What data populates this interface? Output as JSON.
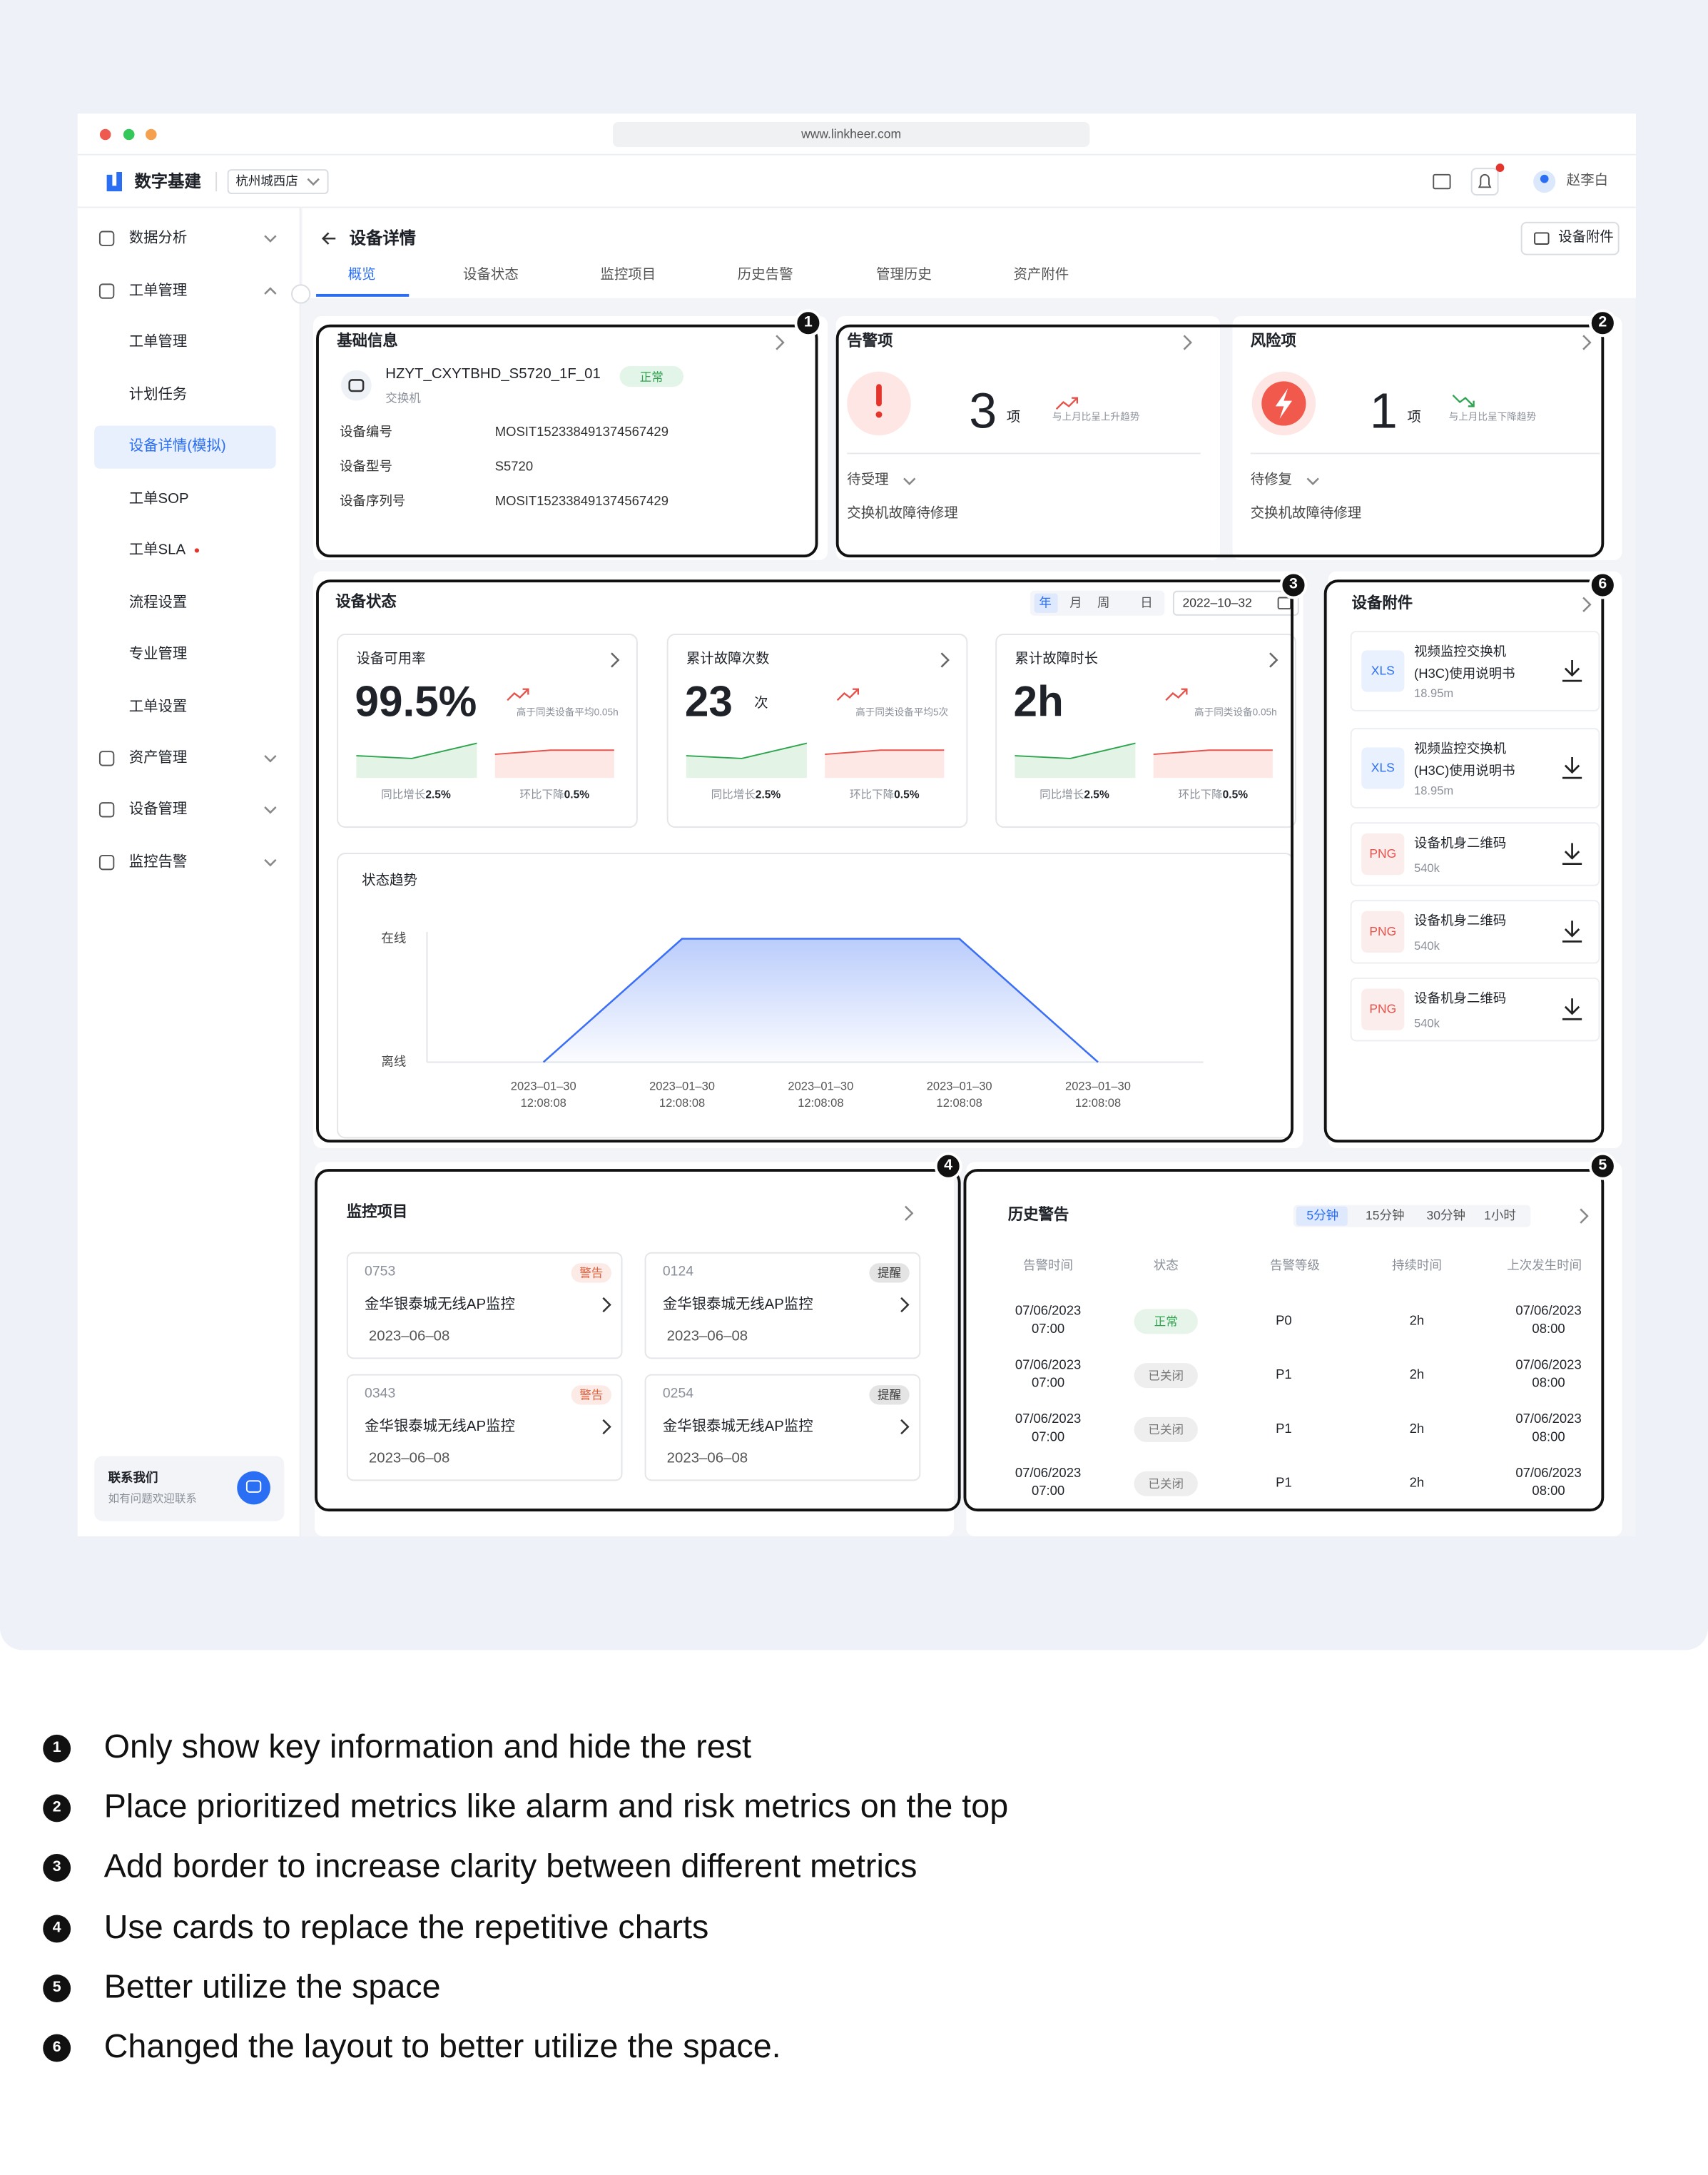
{
  "browser": {
    "url": "www.linkheer.com"
  },
  "header": {
    "app_name": "数字基建",
    "store": "杭州城西店",
    "user": "赵李白"
  },
  "sidebar": {
    "items": [
      {
        "label": "数据分析"
      },
      {
        "label": "工单管理",
        "children": [
          "工单管理",
          "计划任务",
          "设备详情(模拟)",
          "工单SOP",
          "工单SLA",
          "流程设置",
          "专业管理",
          "工单设置"
        ]
      },
      {
        "label": "资产管理"
      },
      {
        "label": "设备管理"
      },
      {
        "label": "监控告警"
      }
    ],
    "contact": {
      "title": "联系我们",
      "subtitle": "如有问题欢迎联系"
    }
  },
  "page": {
    "title": "设备详情",
    "attachment_button": "设备附件",
    "tabs": [
      "概览",
      "设备状态",
      "监控项目",
      "历史告警",
      "管理历史",
      "资产附件"
    ]
  },
  "basic_info": {
    "title": "基础信息",
    "device_name": "HZYT_CXYTBHD_S5720_1F_01",
    "status": "正常",
    "device_type": "交换机",
    "fields": [
      {
        "label": "设备编号",
        "value": "MOSIT152338491374567429"
      },
      {
        "label": "设备型号",
        "value": "S5720"
      },
      {
        "label": "设备序列号",
        "value": "MOSIT152338491374567429"
      }
    ]
  },
  "alarm": {
    "title": "告警项",
    "count": 3,
    "unit": "项",
    "trend": "与上月比呈上升趋势",
    "status": "待受理",
    "description": "交换机故障待修理"
  },
  "risk": {
    "title": "风险项",
    "count": 1,
    "unit": "项",
    "trend": "与上月比呈下降趋势",
    "status": "待修复",
    "description": "交换机故障待修理"
  },
  "device_status": {
    "title": "设备状态",
    "periods": [
      "年",
      "月",
      "周",
      "日"
    ],
    "date": "2022–10–32",
    "metrics": [
      {
        "title": "设备可用率",
        "value": "99.5%",
        "comparison": "高于同类设备平均0.05h",
        "yoy_label": "同比增长",
        "yoy_value": "2.5%",
        "mom_label": "环比下降",
        "mom_value": "0.5%"
      },
      {
        "title": "累计故障次数",
        "value": 23,
        "unit": "次",
        "comparison": "高于同类设备平均5次",
        "yoy_label": "同比增长",
        "yoy_value": "2.5%",
        "mom_label": "环比下降",
        "mom_value": "0.5%"
      },
      {
        "title": "累计故障时长",
        "value": "2h",
        "comparison": "高于同类设备0.05h",
        "yoy_label": "同比增长",
        "yoy_value": "2.5%",
        "mom_label": "环比下降",
        "mom_value": "0.5%"
      }
    ]
  },
  "chart_data": {
    "type": "line",
    "title": "状态趋势",
    "categories": [
      "2023–01–30\n12:08:08",
      "2023–01–30\n12:08:08",
      "2023–01–30\n12:08:08",
      "2023–01–30\n12:08:08",
      "2023–01–30\n12:08:08"
    ],
    "series": [
      {
        "color": "#3b6ff5",
        "values": [
          0,
          1,
          1,
          1,
          0
        ]
      }
    ],
    "ylim": [
      0,
      1
    ],
    "yticks": [
      {
        "value": 0,
        "label": "离线"
      },
      {
        "value": 1,
        "label": "在线"
      }
    ]
  },
  "attachments": {
    "title": "设备附件",
    "files": [
      {
        "type": "XLS",
        "name": "视频监控交换机(H3C)使用说明书",
        "size": "18.95m",
        "color": "#2a6ff3"
      },
      {
        "type": "XLS",
        "name": "视频监控交换机(H3C)使用说明书",
        "size": "18.95m",
        "color": "#2a6ff3"
      },
      {
        "type": "PNG",
        "name": "设备机身二维码",
        "size": "540k",
        "color": "#e5534b"
      },
      {
        "type": "PNG",
        "name": "设备机身二维码",
        "size": "540k",
        "color": "#e5534b"
      },
      {
        "type": "PNG",
        "name": "设备机身二维码",
        "size": "540k",
        "color": "#e5534b"
      }
    ]
  },
  "monitoring": {
    "title": "监控项目",
    "items": [
      {
        "id": "0753",
        "level": "警告",
        "color": "#e0603d",
        "name": "金华银泰城无线AP监控",
        "date": "2023–06–08"
      },
      {
        "id": "0124",
        "level": "提醒",
        "color": "#333333",
        "name": "金华银泰城无线AP监控",
        "date": "2023–06–08"
      },
      {
        "id": "0343",
        "level": "警告",
        "color": "#e0603d",
        "name": "金华银泰城无线AP监控",
        "date": "2023–06–08"
      },
      {
        "id": "0254",
        "level": "提醒",
        "color": "#333333",
        "name": "金华银泰城无线AP监控",
        "date": "2023–06–08"
      }
    ]
  },
  "history": {
    "title": "历史警告",
    "ranges": [
      "5分钟",
      "15分钟",
      "30分钟",
      "1小时"
    ],
    "columns": [
      "告警时间",
      "状态",
      "告警等级",
      "持续时间",
      "上次发生时间"
    ],
    "rows": [
      {
        "time": "07/06/2023 07:00",
        "status": "正常",
        "color": "#2fa44f",
        "level": "P0",
        "duration": "2h",
        "last": "07/06/2023 08:00"
      },
      {
        "time": "07/06/2023 07:00",
        "status": "已关闭",
        "color": "#777777",
        "level": "P1",
        "duration": "2h",
        "last": "07/06/2023 08:00"
      },
      {
        "time": "07/06/2023 07:00",
        "status": "已关闭",
        "color": "#777777",
        "level": "P1",
        "duration": "2h",
        "last": "07/06/2023 08:00"
      },
      {
        "time": "07/06/2023 07:00",
        "status": "已关闭",
        "color": "#777777",
        "level": "P1",
        "duration": "2h",
        "last": "07/06/2023 08:00"
      }
    ]
  },
  "notes": [
    {
      "number": "1",
      "text": "Only show key information and hide the rest"
    },
    {
      "number": "2",
      "text": "Place prioritized metrics like alarm and risk metrics on the top"
    },
    {
      "number": "3",
      "text": "Add border to increase clarity between different metrics"
    },
    {
      "number": "4",
      "text": "Use cards to replace the repetitive charts"
    },
    {
      "number": "5",
      "text": "Better utilize the space"
    },
    {
      "number": "6",
      "text": "Changed the layout to better utilize the space."
    }
  ]
}
